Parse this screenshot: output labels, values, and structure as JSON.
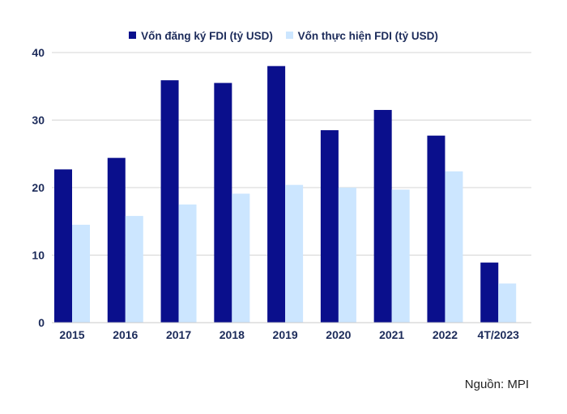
{
  "chart_data": {
    "type": "bar",
    "categories": [
      "2015",
      "2016",
      "2017",
      "2018",
      "2019",
      "2020",
      "2021",
      "2022",
      "4T/2023"
    ],
    "series": [
      {
        "name": "Vốn đăng ký FDI  (tỷ USD)",
        "color": "#0a0f8c",
        "values": [
          22.7,
          24.4,
          35.9,
          35.5,
          38.0,
          28.5,
          31.5,
          27.7,
          8.9
        ]
      },
      {
        "name": "Vốn thực hiện FDI (tỷ USD)",
        "color": "#cce6ff",
        "values": [
          14.5,
          15.8,
          17.5,
          19.1,
          20.4,
          20.0,
          19.7,
          22.4,
          5.8
        ]
      }
    ],
    "y_ticks": [
      "0",
      "10",
      "20",
      "30",
      "40"
    ],
    "ylim": [
      0,
      40
    ],
    "grid": true,
    "legend_position": "top-center",
    "title": "",
    "xlabel": "",
    "ylabel": ""
  },
  "source_text": "Nguồn: MPI"
}
